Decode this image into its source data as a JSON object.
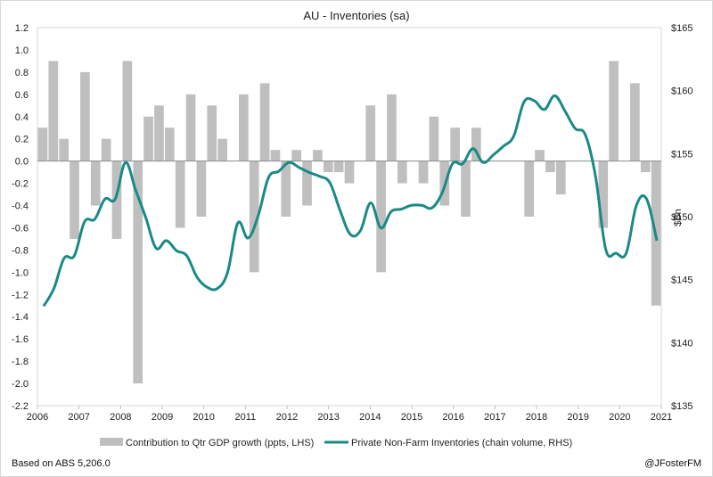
{
  "chart_data": {
    "type": "bar+line",
    "title": "AU - Inventories (sa)",
    "ylabel_right": "$Bn",
    "x_ticks": [
      "2006",
      "2007",
      "2008",
      "2009",
      "2010",
      "2011",
      "2012",
      "2013",
      "2014",
      "2015",
      "2016",
      "2017",
      "2018",
      "2019",
      "2020",
      "2021"
    ],
    "xlim": [
      2006,
      2021
    ],
    "left_axis": {
      "range": [
        -2.2,
        1.2
      ],
      "ticks": [
        "1.2",
        "1.0",
        "0.8",
        "0.6",
        "0.4",
        "0.2",
        "0.0",
        "-0.2",
        "-0.4",
        "-0.6",
        "-0.8",
        "-1.0",
        "-1.2",
        "-1.4",
        "-1.6",
        "-1.8",
        "-2.0",
        "-2.2"
      ]
    },
    "right_axis": {
      "range": [
        135,
        165
      ],
      "ticks": [
        "$165",
        "$160",
        "$155",
        "$150",
        "$145",
        "$140",
        "$135"
      ]
    },
    "series": [
      {
        "name": "Contribution to Qtr GDP growth (ppts, LHS)",
        "kind": "bar",
        "axis": "left",
        "color": "#bfbfbf",
        "values": [
          0.3,
          0.9,
          0.2,
          -0.7,
          0.8,
          -0.4,
          0.2,
          -0.7,
          0.9,
          -2.0,
          0.4,
          0.5,
          0.3,
          -0.6,
          0.6,
          -0.5,
          0.5,
          0.2,
          0.0,
          0.6,
          -1.0,
          0.7,
          0.1,
          -0.5,
          0.1,
          -0.4,
          0.1,
          -0.1,
          -0.1,
          -0.2,
          0.0,
          0.5,
          -1.0,
          0.6,
          -0.2,
          0.0,
          -0.2,
          0.4,
          -0.4,
          0.3,
          -0.5,
          0.3,
          0.0,
          0.0,
          0.0,
          0.0,
          -0.5,
          0.1,
          -0.1,
          -0.3,
          0.0,
          0.0,
          0.0,
          -0.6,
          0.9,
          0.0,
          0.7,
          -0.1,
          -1.3
        ]
      },
      {
        "name": "Private Non-Farm Inventories (chain volume, RHS)",
        "kind": "line",
        "axis": "right",
        "color": "#1a8a85",
        "values": [
          142.9,
          144.3,
          146.7,
          146.9,
          149.6,
          149.8,
          151.4,
          151.4,
          154.3,
          152.1,
          149.9,
          147.5,
          148.1,
          147.3,
          146.9,
          145.2,
          144.4,
          144.3,
          145.6,
          149.5,
          148.3,
          150.1,
          153.1,
          153.6,
          154.3,
          153.9,
          153.5,
          153.2,
          152.7,
          150.5,
          148.6,
          148.9,
          151.1,
          149.1,
          150.4,
          150.6,
          150.9,
          150.9,
          150.7,
          151.9,
          154.2,
          154.2,
          155.4,
          154.3,
          154.9,
          155.6,
          156.4,
          159.1,
          159.2,
          158.5,
          159.6,
          158.4,
          157.0,
          156.5,
          153.2,
          147.4,
          147.1,
          147.1,
          150.9,
          151.4,
          148.1
        ]
      }
    ]
  },
  "footer": {
    "left": "Based on ABS 5,206.0",
    "right": "@JFosterFM"
  }
}
